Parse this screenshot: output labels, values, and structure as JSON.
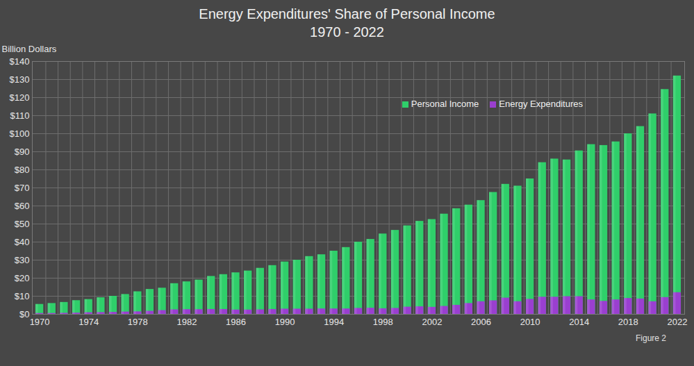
{
  "chart_data": {
    "type": "bar",
    "title": "Energy Expenditures' Share of Personal Income",
    "subtitle": "1970 - 2022",
    "y_label": "Billion Dollars",
    "caption": "Figure 2",
    "categories": [
      "1970",
      null,
      null,
      null,
      "1974",
      null,
      null,
      null,
      "1978",
      null,
      null,
      null,
      "1982",
      null,
      null,
      null,
      "1986",
      null,
      null,
      null,
      "1990",
      null,
      null,
      null,
      "1994",
      null,
      null,
      null,
      "1998",
      null,
      null,
      null,
      "2002",
      null,
      null,
      null,
      "2006",
      null,
      null,
      null,
      "2010",
      null,
      null,
      null,
      "2014",
      null,
      null,
      null,
      "2018",
      null,
      null,
      null,
      "2022"
    ],
    "series": [
      {
        "name": "Personal Income",
        "color": "#2fcf6a",
        "values": [
          5.5,
          6,
          6.6,
          7.6,
          8.2,
          9.2,
          10,
          11,
          12.5,
          13.8,
          14.5,
          17,
          18,
          19,
          21,
          22,
          23,
          24,
          25.5,
          27,
          29,
          30,
          32,
          33,
          35,
          37,
          40,
          41.5,
          44.5,
          46.5,
          49,
          51.5,
          52.5,
          55.5,
          58.5,
          60.5,
          63,
          67.5,
          72,
          71,
          75,
          84,
          86,
          85.5,
          90.5,
          94,
          93.5,
          95.5,
          100,
          104,
          111,
          124.5,
          132
        ]
      },
      {
        "name": "Energy Expenditures",
        "color": "#9a3fd0",
        "values": [
          0.5,
          0.5,
          0.6,
          0.7,
          0.9,
          1,
          1.1,
          1.3,
          1.4,
          1.7,
          2.1,
          2.5,
          2.6,
          2.6,
          2.7,
          2.7,
          2.4,
          2.4,
          2.5,
          2.7,
          2.9,
          2.9,
          2.9,
          3,
          3,
          3,
          3.3,
          3.4,
          3.1,
          3.3,
          4,
          4.2,
          3.9,
          4.4,
          5,
          6,
          7,
          7.5,
          9,
          7,
          8.3,
          9.5,
          9.5,
          9.8,
          9.8,
          8,
          7.2,
          8,
          8.8,
          8.5,
          7,
          9.3,
          12
        ]
      }
    ],
    "stacked": false,
    "ylim": [
      0,
      140
    ],
    "yticks": [
      {
        "value": 0,
        "label": "$0"
      },
      {
        "value": 10,
        "label": "$10"
      },
      {
        "value": 20,
        "label": "$20"
      },
      {
        "value": 30,
        "label": "$30"
      },
      {
        "value": 40,
        "label": "$40"
      },
      {
        "value": 50,
        "label": "$50"
      },
      {
        "value": 60,
        "label": "$60"
      },
      {
        "value": 70,
        "label": "$70"
      },
      {
        "value": 80,
        "label": "$80"
      },
      {
        "value": 90,
        "label": "$90"
      },
      {
        "value": 100,
        "label": "$100"
      },
      {
        "value": 110,
        "label": "$110"
      },
      {
        "value": 120,
        "label": "$120"
      },
      {
        "value": 130,
        "label": "$130"
      },
      {
        "value": 140,
        "label": "$140"
      }
    ],
    "grid": true,
    "legend": "top-right"
  }
}
